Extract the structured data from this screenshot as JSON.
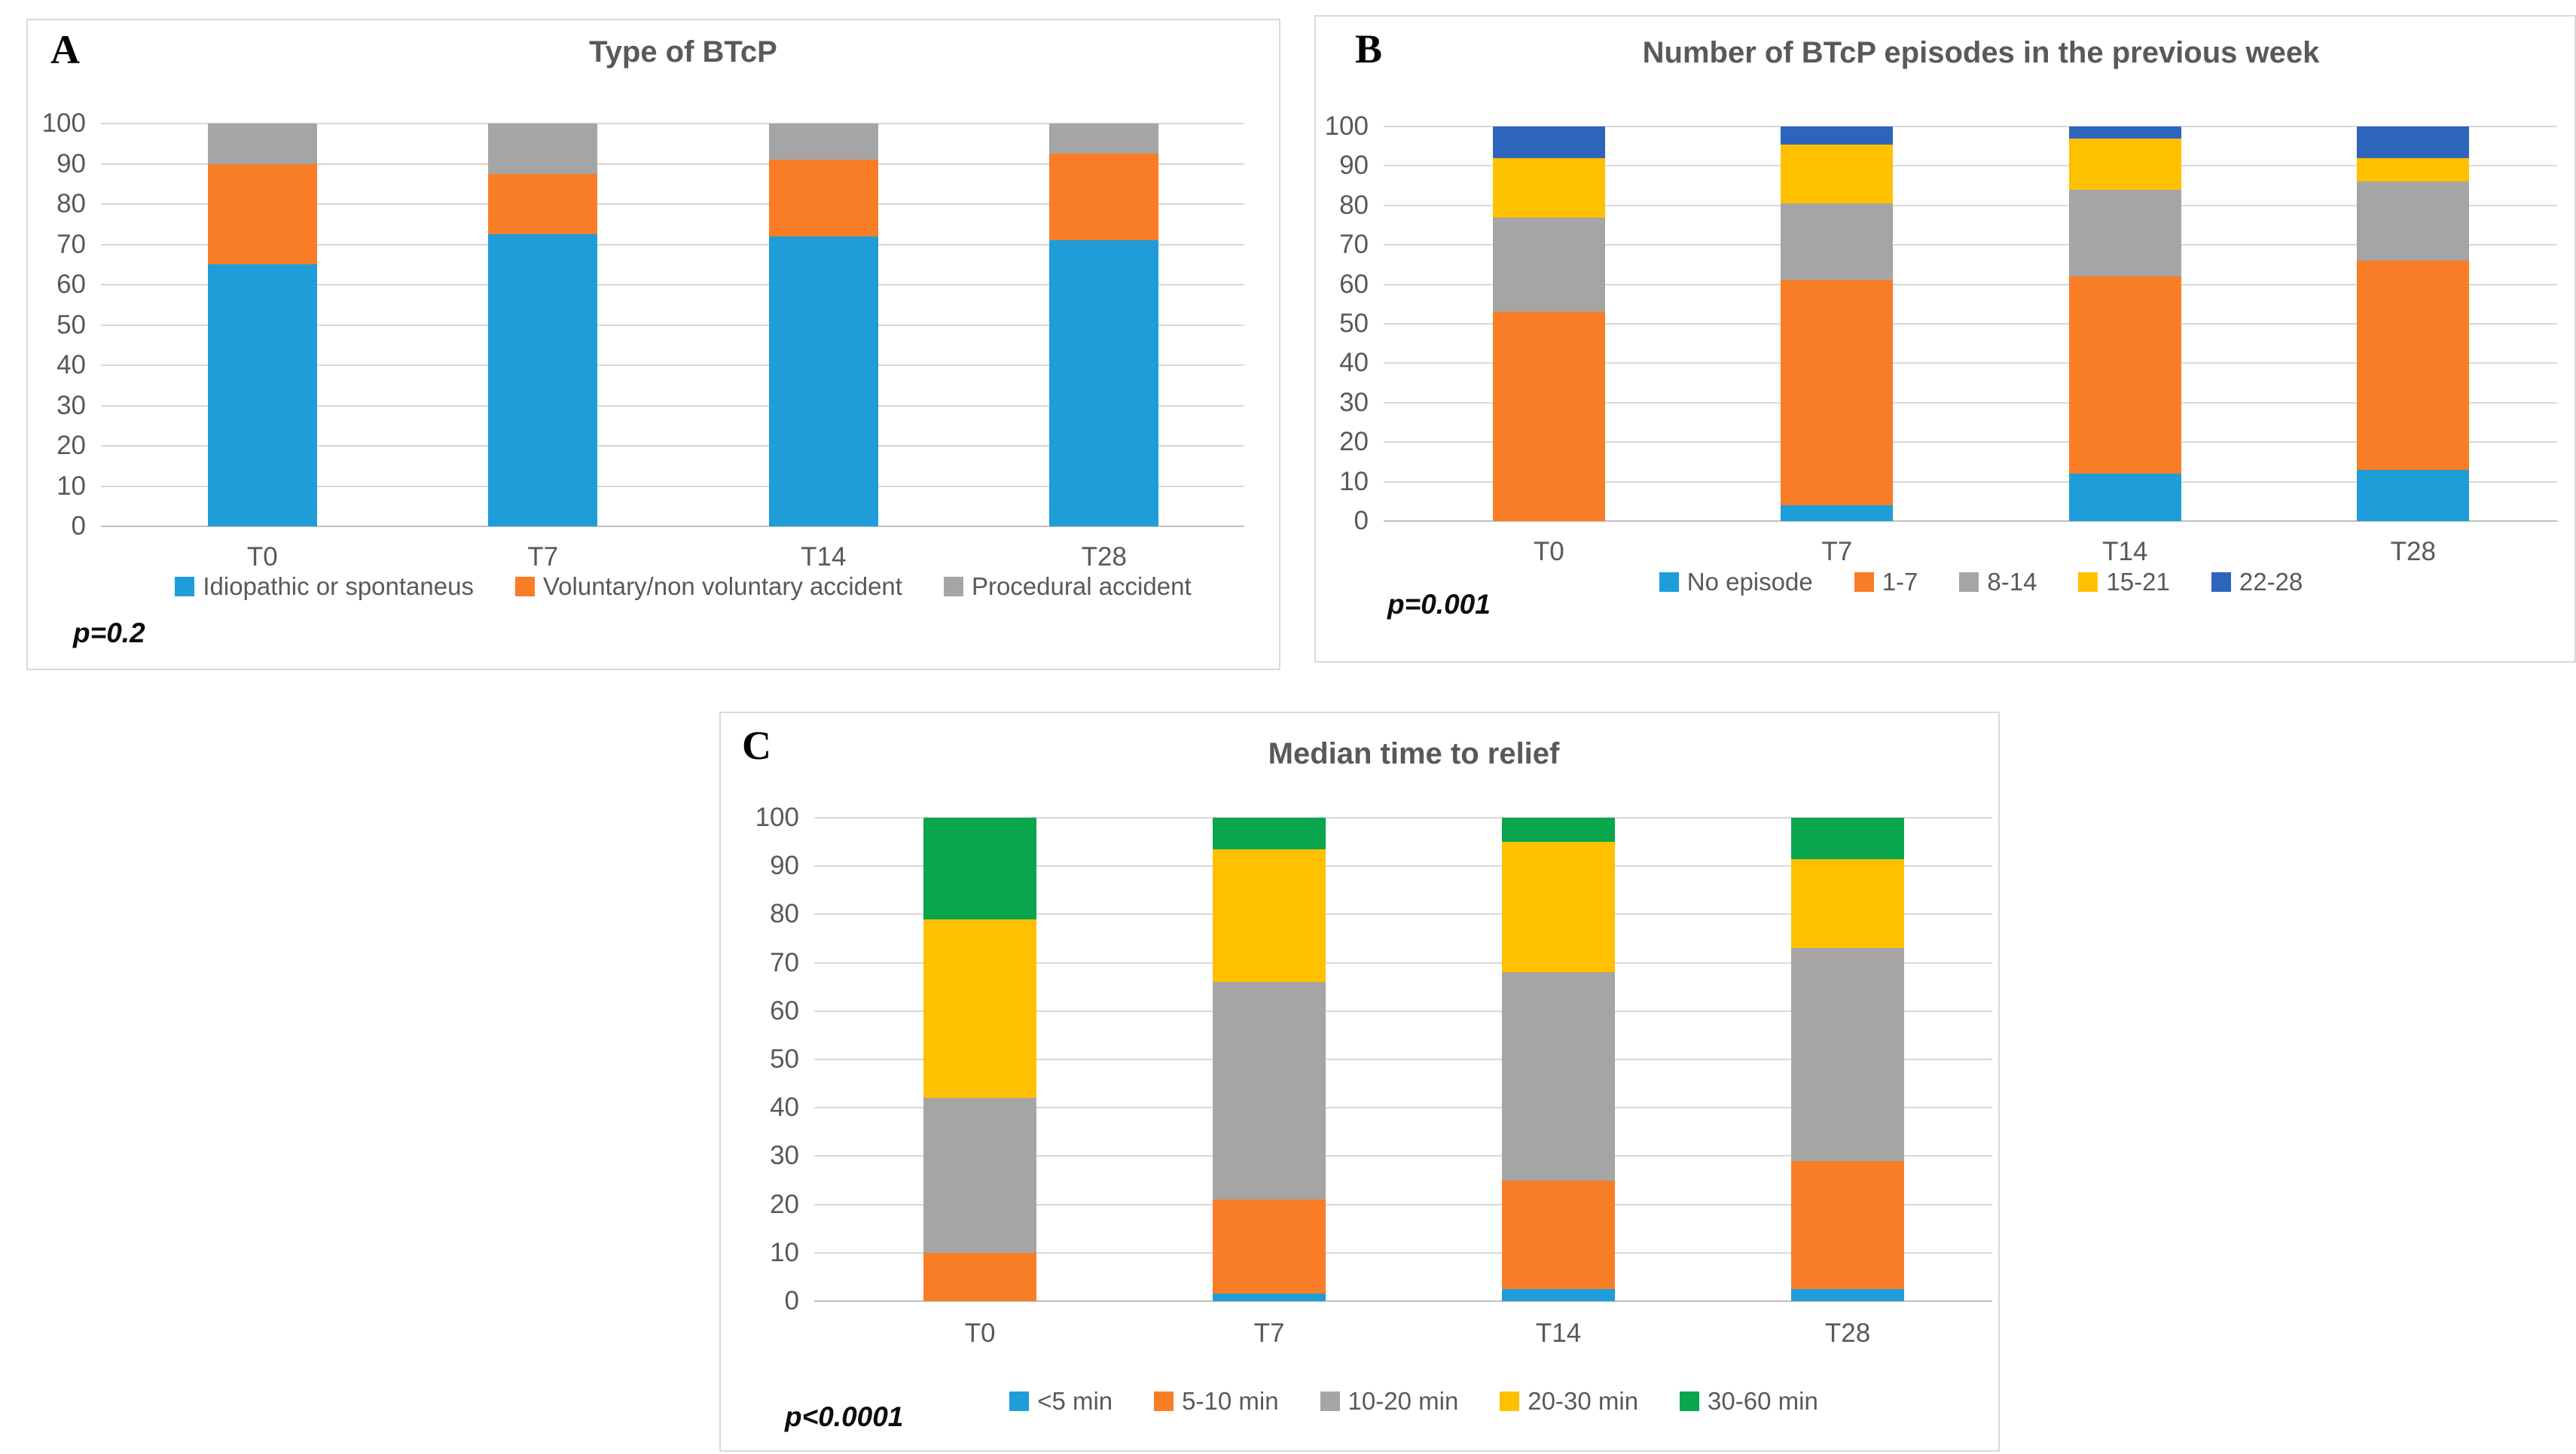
{
  "figure": {
    "background": "#ffffff",
    "panel_border_color": "#d9d9d9",
    "gridline_color": "#d9d9d9",
    "text_color": "#595959"
  },
  "chart_data": [
    {
      "panel_letter": "A",
      "type": "bar",
      "stacked": true,
      "title": "Type of BTcP",
      "p_value": "p=0.2",
      "categories": [
        "T0",
        "T7",
        "T14",
        "T28"
      ],
      "series": [
        {
          "name": "Idiopathic or spontaneus",
          "color": "#1F9DD9",
          "values": [
            65,
            72.5,
            72,
            71
          ]
        },
        {
          "name": "Voluntary/non voluntary accident",
          "color": "#F97D27",
          "values": [
            25,
            15,
            19,
            21.5
          ]
        },
        {
          "name": "Procedural accident",
          "color": "#A5A5A5",
          "values": [
            10,
            12.5,
            9,
            7.5
          ]
        }
      ],
      "ylim": [
        0,
        100
      ],
      "y_ticks": [
        0,
        10,
        20,
        30,
        40,
        50,
        60,
        70,
        80,
        90,
        100
      ],
      "grid": true,
      "legend_position": "bottom"
    },
    {
      "panel_letter": "B",
      "type": "bar",
      "stacked": true,
      "title": "Number of BTcP episodes in the previous week",
      "p_value": "p=0.001",
      "categories": [
        "T0",
        "T7",
        "T14",
        "T28"
      ],
      "series": [
        {
          "name": "No episode",
          "color": "#1F9DD9",
          "values": [
            0,
            4,
            12,
            13
          ]
        },
        {
          "name": "1-7",
          "color": "#F97D27",
          "values": [
            53,
            57,
            50,
            53
          ]
        },
        {
          "name": "8-14",
          "color": "#A5A5A5",
          "values": [
            24,
            19.5,
            22,
            20
          ]
        },
        {
          "name": "15-21",
          "color": "#FFC000",
          "values": [
            15,
            15,
            13,
            6
          ]
        },
        {
          "name": "22-28",
          "color": "#2D64BC",
          "values": [
            8,
            4.5,
            3,
            8
          ]
        }
      ],
      "ylim": [
        0,
        100
      ],
      "y_ticks": [
        0,
        10,
        20,
        30,
        40,
        50,
        60,
        70,
        80,
        90,
        100
      ],
      "grid": true,
      "legend_position": "bottom"
    },
    {
      "panel_letter": "C",
      "type": "bar",
      "stacked": true,
      "title": "Median time to relief",
      "p_value": "p<0.0001",
      "categories": [
        "T0",
        "T7",
        "T14",
        "T28"
      ],
      "series": [
        {
          "name": "<5 min",
          "color": "#1F9DD9",
          "values": [
            0,
            1.5,
            2.5,
            2.5
          ]
        },
        {
          "name": "5-10 min",
          "color": "#F97D27",
          "values": [
            10,
            19.5,
            22.5,
            26.5
          ]
        },
        {
          "name": "10-20 min",
          "color": "#A5A5A5",
          "values": [
            32,
            45,
            43,
            44
          ]
        },
        {
          "name": "20-30 min",
          "color": "#FFC000",
          "values": [
            37,
            27.5,
            27,
            18.5
          ]
        },
        {
          "name": "30-60 min",
          "color": "#09A64D",
          "values": [
            21,
            6.5,
            5,
            8.5
          ]
        }
      ],
      "ylim": [
        0,
        100
      ],
      "y_ticks": [
        0,
        10,
        20,
        30,
        40,
        50,
        60,
        70,
        80,
        90,
        100
      ],
      "grid": true,
      "legend_position": "bottom"
    }
  ]
}
